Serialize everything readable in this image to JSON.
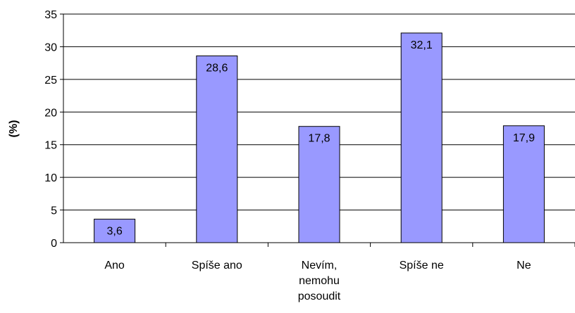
{
  "chart_data": {
    "type": "bar",
    "y_label": "(%)",
    "categories": [
      "Ano",
      "Spíše ano",
      "Nevím, nemohu posoudit",
      "Spíše ne",
      "Ne"
    ],
    "values": [
      3.6,
      28.6,
      17.8,
      32.1,
      17.9
    ],
    "value_labels": [
      "3,6",
      "28,6",
      "17,8",
      "32,1",
      "17,9"
    ],
    "color": "#9999ff",
    "ylim": [
      0,
      35
    ],
    "yticks": [
      0,
      5,
      10,
      15,
      20,
      25,
      30,
      35
    ],
    "grid": true
  }
}
